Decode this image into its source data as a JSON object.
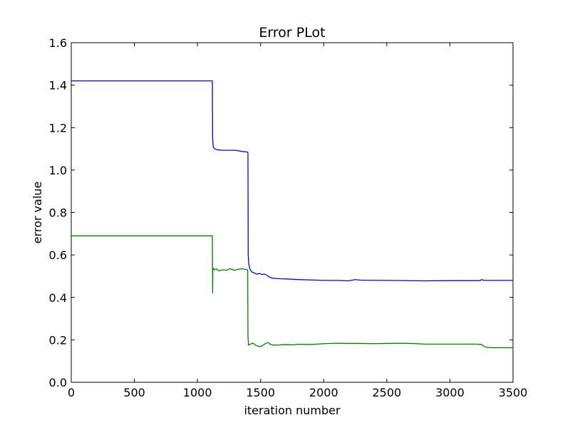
{
  "chart_data": {
    "type": "line",
    "title": "Error PLot",
    "xlabel": "iteration number",
    "ylabel": "error value",
    "xlim": [
      0,
      3500
    ],
    "ylim": [
      0,
      1.6
    ],
    "x_ticks": [
      0,
      500,
      1000,
      1500,
      2000,
      2500,
      3000,
      3500
    ],
    "x_tick_labels": [
      "0",
      "500",
      "1000",
      "1500",
      "2000",
      "2500",
      "3000",
      "3500"
    ],
    "y_ticks": [
      0.0,
      0.2,
      0.4,
      0.6,
      0.8,
      1.0,
      1.2,
      1.4,
      1.6
    ],
    "y_tick_labels": [
      "0.0",
      "0.2",
      "0.4",
      "0.6",
      "0.8",
      "1.0",
      "1.2",
      "1.4",
      "1.6"
    ],
    "grid": false,
    "series": [
      {
        "color": "#0000ff",
        "points": [
          [
            0,
            1.42
          ],
          [
            1118,
            1.42
          ],
          [
            1120,
            1.15
          ],
          [
            1125,
            1.11
          ],
          [
            1135,
            1.1
          ],
          [
            1160,
            1.095
          ],
          [
            1200,
            1.093
          ],
          [
            1250,
            1.093
          ],
          [
            1300,
            1.093
          ],
          [
            1330,
            1.09
          ],
          [
            1360,
            1.087
          ],
          [
            1395,
            1.085
          ],
          [
            1400,
            1.08
          ],
          [
            1402,
            0.6
          ],
          [
            1406,
            0.56
          ],
          [
            1415,
            0.535
          ],
          [
            1430,
            0.52
          ],
          [
            1450,
            0.515
          ],
          [
            1470,
            0.51
          ],
          [
            1490,
            0.513
          ],
          [
            1510,
            0.508
          ],
          [
            1530,
            0.51
          ],
          [
            1550,
            0.505
          ],
          [
            1570,
            0.495
          ],
          [
            1600,
            0.49
          ],
          [
            1650,
            0.488
          ],
          [
            1700,
            0.487
          ],
          [
            1800,
            0.484
          ],
          [
            2000,
            0.48
          ],
          [
            2100,
            0.48
          ],
          [
            2200,
            0.478
          ],
          [
            2250,
            0.484
          ],
          [
            2300,
            0.481
          ],
          [
            2500,
            0.48
          ],
          [
            2800,
            0.478
          ],
          [
            3000,
            0.479
          ],
          [
            3240,
            0.479
          ],
          [
            3250,
            0.484
          ],
          [
            3270,
            0.48
          ],
          [
            3500,
            0.48
          ]
        ]
      },
      {
        "color": "#008000",
        "points": [
          [
            0,
            0.69
          ],
          [
            1118,
            0.69
          ],
          [
            1120,
            0.42
          ],
          [
            1122,
            0.54
          ],
          [
            1130,
            0.53
          ],
          [
            1150,
            0.535
          ],
          [
            1170,
            0.525
          ],
          [
            1200,
            0.53
          ],
          [
            1230,
            0.528
          ],
          [
            1260,
            0.535
          ],
          [
            1290,
            0.528
          ],
          [
            1320,
            0.532
          ],
          [
            1350,
            0.535
          ],
          [
            1380,
            0.532
          ],
          [
            1398,
            0.53
          ],
          [
            1400,
            0.22
          ],
          [
            1404,
            0.175
          ],
          [
            1420,
            0.18
          ],
          [
            1440,
            0.185
          ],
          [
            1460,
            0.175
          ],
          [
            1480,
            0.17
          ],
          [
            1500,
            0.168
          ],
          [
            1520,
            0.175
          ],
          [
            1540,
            0.183
          ],
          [
            1560,
            0.187
          ],
          [
            1580,
            0.178
          ],
          [
            1600,
            0.175
          ],
          [
            1650,
            0.176
          ],
          [
            1700,
            0.178
          ],
          [
            1750,
            0.176
          ],
          [
            1800,
            0.179
          ],
          [
            1900,
            0.178
          ],
          [
            2000,
            0.182
          ],
          [
            2100,
            0.184
          ],
          [
            2200,
            0.183
          ],
          [
            2300,
            0.183
          ],
          [
            2400,
            0.182
          ],
          [
            2500,
            0.183
          ],
          [
            2600,
            0.184
          ],
          [
            2700,
            0.183
          ],
          [
            2800,
            0.18
          ],
          [
            3000,
            0.18
          ],
          [
            3200,
            0.18
          ],
          [
            3250,
            0.178
          ],
          [
            3280,
            0.166
          ],
          [
            3320,
            0.163
          ],
          [
            3500,
            0.163
          ]
        ]
      }
    ]
  }
}
